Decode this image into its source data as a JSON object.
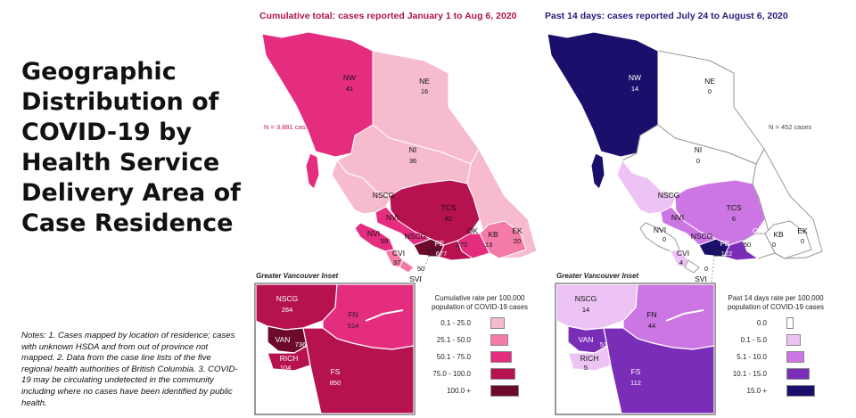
{
  "title_lines": [
    "Geographic",
    "Distribution of",
    "COVID-19 by",
    "Health Service",
    "Delivery Area of",
    "Case Residence"
  ],
  "notes": "Notes: 1. Cases mapped by location of residence; cases with unknown HSDA and from out of province not mapped. 2. Data from the case line lists of the five regional health authorities of British Columbia. 3. COVID-19 may be circulating undetected in the community including where no cases have been identified by public health.",
  "colors": {
    "cumulative_legend": [
      "#f6bccd",
      "#f47aa7",
      "#e52d7f",
      "#b5124f",
      "#6b0a2c"
    ],
    "recent_legend": [
      "#ffffff",
      "#ecc3f4",
      "#cc76e4",
      "#7a2eb8",
      "#1b0f6c"
    ],
    "cumulative_title": "#b0154a",
    "recent_title": "#2b1a7a"
  },
  "left_panel": {
    "title": "Cumulative total: cases reported January 1 to Aug 6, 2020",
    "n_cases": "N = 3,881 cases",
    "regions": [
      {
        "code": "NW",
        "value": "41"
      },
      {
        "code": "NE",
        "value": "16"
      },
      {
        "code": "NI",
        "value": "36"
      },
      {
        "code": "NSCG",
        "value": ""
      },
      {
        "code": "TCS",
        "value": "82"
      },
      {
        "code": "NVI",
        "value": "59"
      },
      {
        "code": "NSCG",
        "value": ""
      },
      {
        "code": "OK",
        "value": "270"
      },
      {
        "code": "KB",
        "value": "13"
      },
      {
        "code": "EK",
        "value": "20"
      },
      {
        "code": "FE",
        "value": "677"
      },
      {
        "code": "CVI",
        "value": "37"
      },
      {
        "code": "SVI",
        "value": "50"
      },
      {
        "code": "NVI",
        "value": ""
      }
    ],
    "inset_caption": "Greater Vancouver Inset",
    "inset_regions": [
      {
        "code": "NSCG",
        "value": "284"
      },
      {
        "code": "FN",
        "value": "514"
      },
      {
        "code": "VAN",
        "value": "736"
      },
      {
        "code": "RICH",
        "value": "104"
      },
      {
        "code": "FS",
        "value": "850"
      }
    ],
    "legend_title": "Cumulative rate per 100,000 population of COVID-19 cases",
    "legend_items": [
      "0.1 - 25.0",
      "25.1 - 50.0",
      "50.1 - 75.0",
      "75.0 - 100.0",
      "100.0 +"
    ]
  },
  "right_panel": {
    "title": "Past 14 days: cases reported July 24 to  August 6, 2020",
    "n_cases": "N = 452 cases",
    "regions": [
      {
        "code": "NW",
        "value": "14"
      },
      {
        "code": "NE",
        "value": "0"
      },
      {
        "code": "NI",
        "value": "0"
      },
      {
        "code": "NSCG",
        "value": ""
      },
      {
        "code": "TCS",
        "value": "6"
      },
      {
        "code": "NVI",
        "value": ""
      },
      {
        "code": "NVI",
        "value": "0"
      },
      {
        "code": "NSCG",
        "value": ""
      },
      {
        "code": "OK",
        "value": "50"
      },
      {
        "code": "KB",
        "value": "0"
      },
      {
        "code": "EK",
        "value": "0"
      },
      {
        "code": "FE",
        "value": "122"
      },
      {
        "code": "CVI",
        "value": "4"
      },
      {
        "code": "SVI",
        "value": "0"
      }
    ],
    "inset_caption": "Greater Vancouver Inset",
    "inset_regions": [
      {
        "code": "NSCG",
        "value": "14"
      },
      {
        "code": "FN",
        "value": "44"
      },
      {
        "code": "VAN",
        "value": "51"
      },
      {
        "code": "RICH",
        "value": "5"
      },
      {
        "code": "FS",
        "value": "112"
      }
    ],
    "legend_title": "Past 14 days rate per 100,000 population of COVID-19 cases",
    "legend_items": [
      "0.0",
      "0.1 - 5.0",
      "5.1 - 10.0",
      "10.1 - 15.0",
      "15.0 +"
    ]
  }
}
